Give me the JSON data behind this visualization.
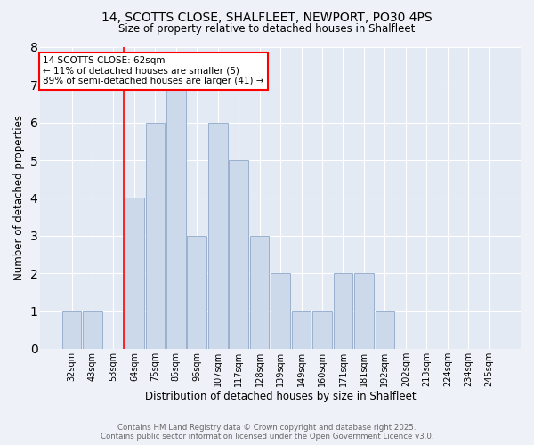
{
  "title_line1": "14, SCOTTS CLOSE, SHALFLEET, NEWPORT, PO30 4PS",
  "title_line2": "Size of property relative to detached houses in Shalfleet",
  "xlabel": "Distribution of detached houses by size in Shalfleet",
  "ylabel": "Number of detached properties",
  "categories": [
    "32sqm",
    "43sqm",
    "53sqm",
    "64sqm",
    "75sqm",
    "85sqm",
    "96sqm",
    "107sqm",
    "117sqm",
    "128sqm",
    "139sqm",
    "149sqm",
    "160sqm",
    "171sqm",
    "181sqm",
    "192sqm",
    "202sqm",
    "213sqm",
    "224sqm",
    "234sqm",
    "245sqm"
  ],
  "values": [
    1,
    1,
    0,
    4,
    6,
    7,
    3,
    6,
    5,
    3,
    2,
    1,
    1,
    2,
    2,
    1,
    0,
    0,
    0,
    0,
    0
  ],
  "bar_color": "#ccd9ea",
  "bar_edge_color": "#9ab0cc",
  "red_line_x": 3,
  "ylim": [
    0,
    8
  ],
  "yticks": [
    0,
    1,
    2,
    3,
    4,
    5,
    6,
    7,
    8
  ],
  "annotation_title": "14 SCOTTS CLOSE: 62sqm",
  "annotation_line1": "← 11% of detached houses are smaller (5)",
  "annotation_line2": "89% of semi-detached houses are larger (41) →",
  "footer_line1": "Contains HM Land Registry data © Crown copyright and database right 2025.",
  "footer_line2": "Contains public sector information licensed under the Open Government Licence v3.0.",
  "bg_color": "#eef2f8",
  "plot_bg_color": "#e4eaf4"
}
